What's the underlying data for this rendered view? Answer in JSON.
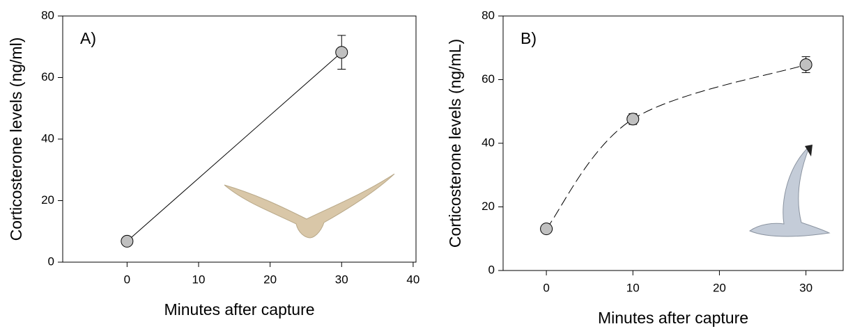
{
  "chart_data": [
    {
      "type": "line",
      "title": "A)",
      "x_label": "Minutes after capture",
      "y_label": "Corticosterone levels (ng/ml)",
      "x": [
        0,
        30
      ],
      "series": [
        {
          "color": "#c0c0c0",
          "values": [
            6.8,
            68.2
          ],
          "errors": [
            null,
            5.5
          ]
        }
      ],
      "line_style": "solid",
      "smooth": false,
      "xlim": [
        -9,
        40.4
      ],
      "ylim": [
        0,
        80
      ],
      "xticks": [
        0,
        10,
        20,
        30,
        40
      ],
      "yticks": [
        0,
        20,
        40,
        60,
        80
      ]
    },
    {
      "type": "line",
      "title": "B)",
      "x_label": "Minutes after capture",
      "y_label": "Corticosterone levels (ng/mL)",
      "x": [
        0,
        10,
        30
      ],
      "series": [
        {
          "color": "#c0c0c0",
          "values": [
            13.1,
            47.6,
            64.7
          ],
          "errors": [
            null,
            1.7,
            2.5
          ]
        }
      ],
      "line_style": "dashed",
      "smooth": true,
      "xlim": [
        -5,
        34.3
      ],
      "ylim": [
        0,
        80
      ],
      "xticks": [
        0,
        10,
        20,
        30
      ],
      "yticks": [
        0,
        20,
        40,
        60,
        80
      ]
    }
  ]
}
